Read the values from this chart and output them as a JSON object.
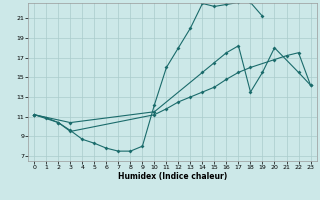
{
  "xlabel": "Humidex (Indice chaleur)",
  "background_color": "#cce8e8",
  "grid_color": "#aacccc",
  "line_color": "#1a6b6b",
  "xlim": [
    -0.5,
    23.5
  ],
  "ylim": [
    6.5,
    22.5
  ],
  "xticks": [
    0,
    1,
    2,
    3,
    4,
    5,
    6,
    7,
    8,
    9,
    10,
    11,
    12,
    13,
    14,
    15,
    16,
    17,
    18,
    19,
    20,
    21,
    22,
    23
  ],
  "yticks": [
    7,
    9,
    11,
    13,
    15,
    17,
    19,
    21
  ],
  "s1_x": [
    0,
    1,
    2,
    3,
    4,
    5,
    6,
    7,
    8,
    9,
    10,
    11,
    12,
    13,
    14,
    15,
    16,
    17,
    18,
    19
  ],
  "s1_y": [
    11.2,
    10.9,
    10.4,
    9.6,
    8.7,
    8.3,
    7.8,
    7.5,
    7.5,
    8.0,
    12.2,
    16.0,
    18.0,
    20.0,
    22.5,
    22.2,
    22.4,
    22.6,
    22.6,
    21.2
  ],
  "s2_x": [
    0,
    2,
    3,
    10,
    11,
    12,
    13,
    14,
    15,
    16,
    17,
    18,
    20,
    21,
    22,
    23
  ],
  "s2_y": [
    11.2,
    10.4,
    9.5,
    11.2,
    11.8,
    12.5,
    13.0,
    13.5,
    14.0,
    14.8,
    15.5,
    16.0,
    16.8,
    17.2,
    17.5,
    14.2
  ],
  "s3_x": [
    0,
    3,
    10,
    14,
    15,
    16,
    17,
    18,
    19,
    20,
    22,
    23
  ],
  "s3_y": [
    11.2,
    10.4,
    11.5,
    15.5,
    16.5,
    17.5,
    18.2,
    13.5,
    15.5,
    18.0,
    15.5,
    14.2
  ]
}
